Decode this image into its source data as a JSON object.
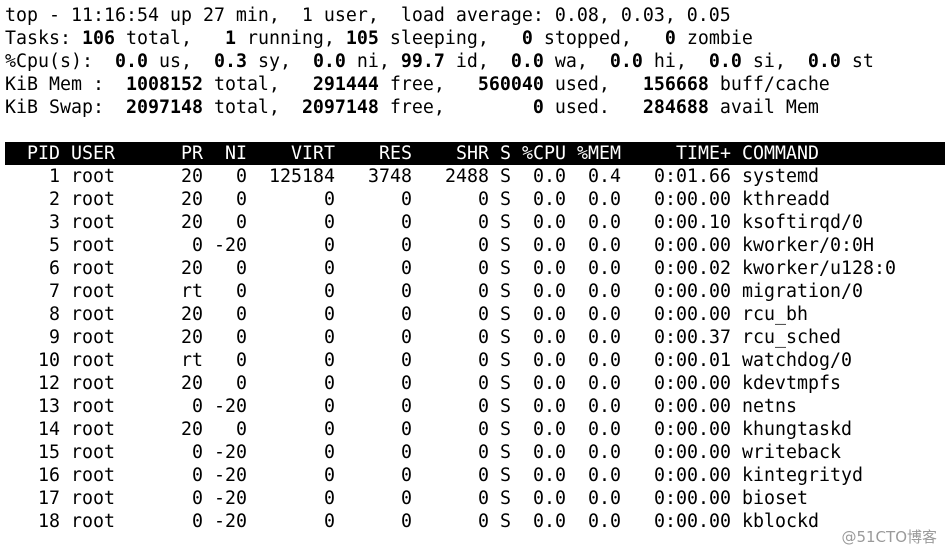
{
  "header": {
    "lines": [
      [
        {
          "text": "top - 11:16:54 up 27 min,  1 user,  load average: 0.08, 0.03, 0.05",
          "bold": false
        }
      ],
      [
        {
          "text": "Tasks: ",
          "bold": false
        },
        {
          "text": "106",
          "bold": true
        },
        {
          "text": " total,   ",
          "bold": false
        },
        {
          "text": "1",
          "bold": true
        },
        {
          "text": " running, ",
          "bold": false
        },
        {
          "text": "105",
          "bold": true
        },
        {
          "text": " sleeping,   ",
          "bold": false
        },
        {
          "text": "0",
          "bold": true
        },
        {
          "text": " stopped,   ",
          "bold": false
        },
        {
          "text": "0",
          "bold": true
        },
        {
          "text": " zombie",
          "bold": false
        }
      ],
      [
        {
          "text": "%Cpu(s):  ",
          "bold": false
        },
        {
          "text": "0.0",
          "bold": true
        },
        {
          "text": " us,  ",
          "bold": false
        },
        {
          "text": "0.3",
          "bold": true
        },
        {
          "text": " sy,  ",
          "bold": false
        },
        {
          "text": "0.0",
          "bold": true
        },
        {
          "text": " ni, ",
          "bold": false
        },
        {
          "text": "99.7",
          "bold": true
        },
        {
          "text": " id,  ",
          "bold": false
        },
        {
          "text": "0.0",
          "bold": true
        },
        {
          "text": " wa,  ",
          "bold": false
        },
        {
          "text": "0.0",
          "bold": true
        },
        {
          "text": " hi,  ",
          "bold": false
        },
        {
          "text": "0.0",
          "bold": true
        },
        {
          "text": " si,  ",
          "bold": false
        },
        {
          "text": "0.0",
          "bold": true
        },
        {
          "text": " st",
          "bold": false
        }
      ],
      [
        {
          "text": "KiB Mem :  ",
          "bold": false
        },
        {
          "text": "1008152",
          "bold": true
        },
        {
          "text": " total,   ",
          "bold": false
        },
        {
          "text": "291444",
          "bold": true
        },
        {
          "text": " free,   ",
          "bold": false
        },
        {
          "text": "560040",
          "bold": true
        },
        {
          "text": " used,   ",
          "bold": false
        },
        {
          "text": "156668",
          "bold": true
        },
        {
          "text": " buff/cache",
          "bold": false
        }
      ],
      [
        {
          "text": "KiB Swap:  ",
          "bold": false
        },
        {
          "text": "2097148",
          "bold": true
        },
        {
          "text": " total,  ",
          "bold": false
        },
        {
          "text": "2097148",
          "bold": true
        },
        {
          "text": " free,        ",
          "bold": false
        },
        {
          "text": "0",
          "bold": true
        },
        {
          "text": " used.   ",
          "bold": false
        },
        {
          "text": "284688",
          "bold": true
        },
        {
          "text": " avail Mem",
          "bold": false
        }
      ]
    ]
  },
  "table": {
    "columns": [
      "PID",
      "USER",
      "PR",
      "NI",
      "VIRT",
      "RES",
      "SHR",
      "S",
      "%CPU",
      "%MEM",
      "TIME+",
      "COMMAND"
    ],
    "rows": [
      [
        "1",
        "root",
        "20",
        "0",
        "125184",
        "3748",
        "2488",
        "S",
        "0.0",
        "0.4",
        "0:01.66",
        "systemd"
      ],
      [
        "2",
        "root",
        "20",
        "0",
        "0",
        "0",
        "0",
        "S",
        "0.0",
        "0.0",
        "0:00.00",
        "kthreadd"
      ],
      [
        "3",
        "root",
        "20",
        "0",
        "0",
        "0",
        "0",
        "S",
        "0.0",
        "0.0",
        "0:00.10",
        "ksoftirqd/0"
      ],
      [
        "5",
        "root",
        "0",
        "-20",
        "0",
        "0",
        "0",
        "S",
        "0.0",
        "0.0",
        "0:00.00",
        "kworker/0:0H"
      ],
      [
        "6",
        "root",
        "20",
        "0",
        "0",
        "0",
        "0",
        "S",
        "0.0",
        "0.0",
        "0:00.02",
        "kworker/u128:0"
      ],
      [
        "7",
        "root",
        "rt",
        "0",
        "0",
        "0",
        "0",
        "S",
        "0.0",
        "0.0",
        "0:00.00",
        "migration/0"
      ],
      [
        "8",
        "root",
        "20",
        "0",
        "0",
        "0",
        "0",
        "S",
        "0.0",
        "0.0",
        "0:00.00",
        "rcu_bh"
      ],
      [
        "9",
        "root",
        "20",
        "0",
        "0",
        "0",
        "0",
        "S",
        "0.0",
        "0.0",
        "0:00.37",
        "rcu_sched"
      ],
      [
        "10",
        "root",
        "rt",
        "0",
        "0",
        "0",
        "0",
        "S",
        "0.0",
        "0.0",
        "0:00.01",
        "watchdog/0"
      ],
      [
        "12",
        "root",
        "20",
        "0",
        "0",
        "0",
        "0",
        "S",
        "0.0",
        "0.0",
        "0:00.00",
        "kdevtmpfs"
      ],
      [
        "13",
        "root",
        "0",
        "-20",
        "0",
        "0",
        "0",
        "S",
        "0.0",
        "0.0",
        "0:00.00",
        "netns"
      ],
      [
        "14",
        "root",
        "20",
        "0",
        "0",
        "0",
        "0",
        "S",
        "0.0",
        "0.0",
        "0:00.00",
        "khungtaskd"
      ],
      [
        "15",
        "root",
        "0",
        "-20",
        "0",
        "0",
        "0",
        "S",
        "0.0",
        "0.0",
        "0:00.00",
        "writeback"
      ],
      [
        "16",
        "root",
        "0",
        "-20",
        "0",
        "0",
        "0",
        "S",
        "0.0",
        "0.0",
        "0:00.00",
        "kintegrityd"
      ],
      [
        "17",
        "root",
        "0",
        "-20",
        "0",
        "0",
        "0",
        "S",
        "0.0",
        "0.0",
        "0:00.00",
        "bioset"
      ],
      [
        "18",
        "root",
        "0",
        "-20",
        "0",
        "0",
        "0",
        "S",
        "0.0",
        "0.0",
        "0:00.00",
        "kblockd"
      ]
    ]
  },
  "watermark": "@51CTO博客"
}
